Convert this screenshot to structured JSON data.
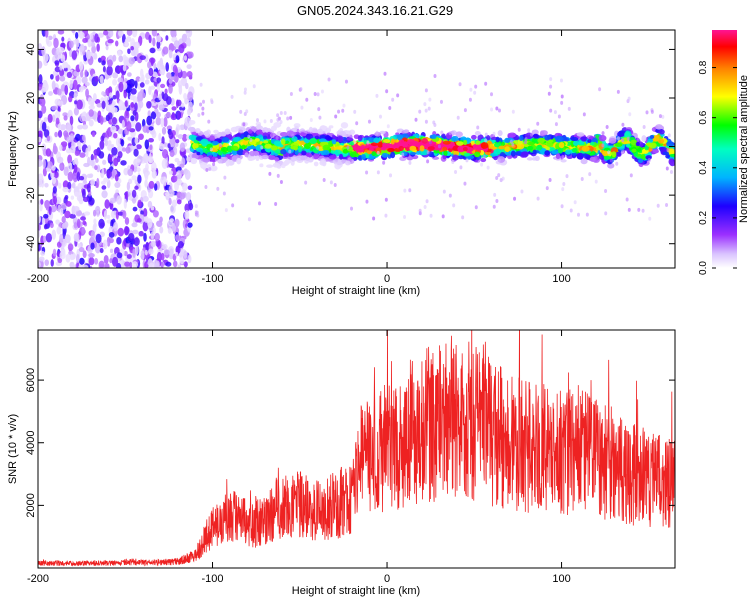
{
  "figure": {
    "title": "GN05.2024.343.16.21.G29"
  },
  "chart_data": [
    {
      "type": "heatmap",
      "xlabel": "Height of straight line (km)",
      "ylabel": "Frequency (Hz)",
      "xlim": [
        -200,
        165
      ],
      "ylim": [
        -50,
        48
      ],
      "xticks": [
        -200,
        -100,
        0,
        100
      ],
      "yticks": [
        -40,
        -20,
        0,
        20,
        40
      ],
      "colorbar": {
        "label": "Normalized spectral amplitude",
        "range": [
          0,
          0.95
        ],
        "ticks": [
          0.0,
          0.2,
          0.4,
          0.6,
          0.8
        ],
        "colors": [
          "#ffffff",
          "#c8a6ff",
          "#8a2be2",
          "#0000ff",
          "#00c8ff",
          "#00ff00",
          "#ffff00",
          "#ff8c00",
          "#ff0000",
          "#ff1493"
        ]
      },
      "description_regions": [
        {
          "x_range": [
            -200,
            -112
          ],
          "freq_range": [
            -50,
            48
          ],
          "amplitude": 0.05
        },
        {
          "x_range": [
            -112,
            165
          ],
          "freq_center": 0,
          "freq_halfwidth": 6,
          "amplitude_peak": 0.95
        }
      ]
    },
    {
      "type": "line",
      "xlabel": "Height of straight line (km)",
      "ylabel": "SNR (10 * v/v)",
      "xlim": [
        -200,
        165
      ],
      "ylim": [
        0,
        7600
      ],
      "xticks": [
        -200,
        -100,
        0,
        100
      ],
      "yticks": [
        2000,
        4000,
        6000
      ],
      "color": "#ee2222",
      "series": [
        {
          "x": [
            -200,
            -180,
            -160,
            -140,
            -120,
            -110,
            -100,
            -90,
            -80,
            -70,
            -60,
            -50,
            -40,
            -30,
            -20,
            -15,
            -10,
            0,
            10,
            20,
            30,
            40,
            50,
            60,
            70,
            80,
            90,
            100,
            110,
            120,
            130,
            140,
            150,
            160,
            165
          ],
          "values": [
            150,
            150,
            160,
            170,
            200,
            400,
            1300,
            1700,
            1400,
            1500,
            2000,
            2000,
            1800,
            2000,
            2300,
            3500,
            3600,
            3800,
            4200,
            4500,
            4700,
            4800,
            4600,
            4300,
            4100,
            3900,
            3800,
            3700,
            3800,
            3500,
            3300,
            3000,
            2900,
            2700,
            2800
          ]
        }
      ]
    }
  ]
}
